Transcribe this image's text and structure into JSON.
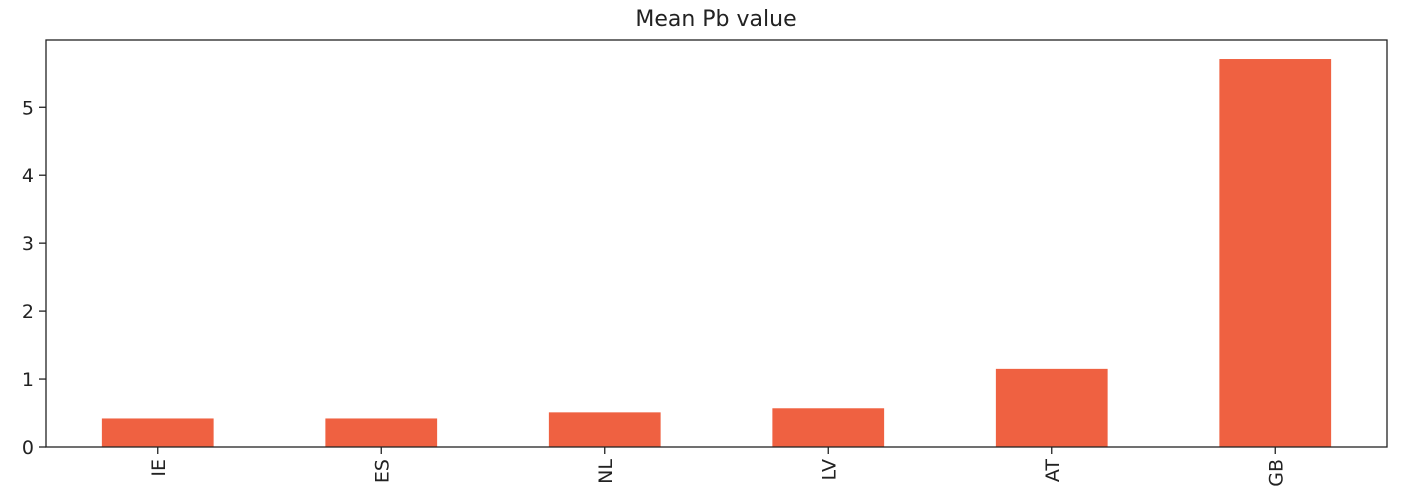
{
  "chart_data": {
    "type": "bar",
    "title": "Mean Pb value",
    "xlabel": "",
    "ylabel": "",
    "categories": [
      "IE",
      "ES",
      "NL",
      "LV",
      "AT",
      "GB"
    ],
    "values": [
      0.42,
      0.42,
      0.51,
      0.57,
      1.15,
      5.71
    ],
    "ylim": [
      0,
      5.99
    ],
    "yticks": [
      0,
      1,
      2,
      3,
      4,
      5
    ],
    "bar_color": "#ef6141",
    "grid": false,
    "legend": "none"
  }
}
